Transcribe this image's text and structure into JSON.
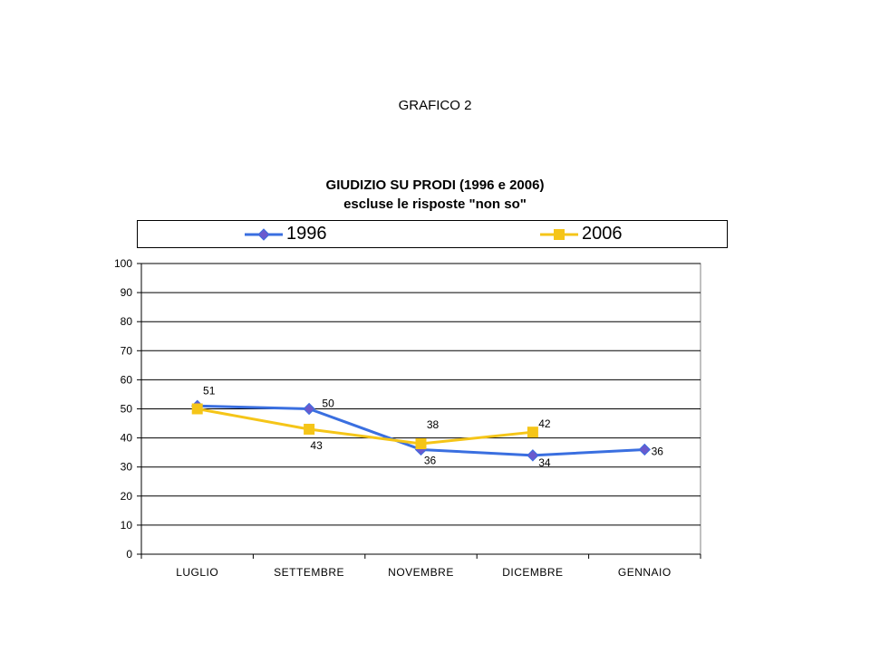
{
  "page": {
    "heading": "GRAFICO 2"
  },
  "chart_data": {
    "type": "line",
    "title_line1": "GIUDIZIO SU PRODI (1996 e 2006)",
    "title_line2": "escluse le risposte \"non so\"",
    "categories": [
      "LUGLIO",
      "SETTEMBRE",
      "NOVEMBRE",
      "DICEMBRE",
      "GENNAIO"
    ],
    "ylim": [
      0,
      100
    ],
    "yticks": [
      0,
      10,
      20,
      30,
      40,
      50,
      60,
      70,
      80,
      90,
      100
    ],
    "grid": true,
    "legend_position": "top",
    "series": [
      {
        "name": "1996",
        "color": "#3a6fe0",
        "marker": "diamond",
        "marker_color": "#6a5acd",
        "values": [
          51,
          50,
          36,
          34,
          36
        ],
        "labels": [
          "51",
          "50",
          "36",
          "34",
          "36"
        ]
      },
      {
        "name": "2006",
        "color": "#f5c518",
        "marker": "square",
        "marker_color": "#f5c518",
        "values": [
          50,
          43,
          38,
          42,
          null
        ],
        "labels": [
          "",
          "43",
          "38",
          "42",
          ""
        ]
      }
    ]
  }
}
